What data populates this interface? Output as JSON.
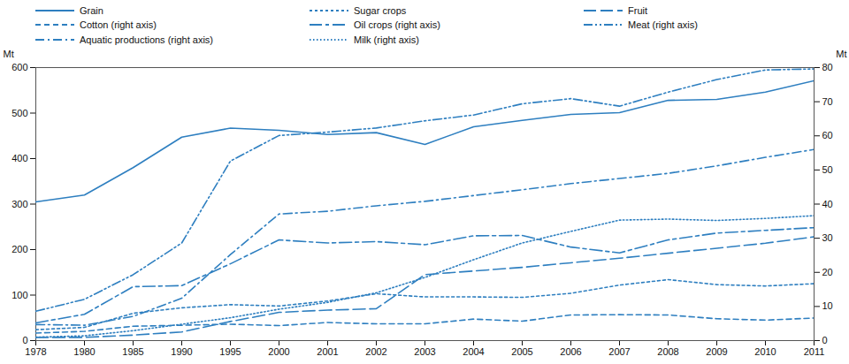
{
  "chart_data": {
    "type": "line",
    "categories": [
      "1978",
      "1980",
      "1985",
      "1990",
      "1995",
      "2000",
      "2001",
      "2002",
      "2003",
      "2004",
      "2005",
      "2006",
      "2007",
      "2008",
      "2009",
      "2010",
      "2011"
    ],
    "series": [
      {
        "name": "Grain",
        "color": "#2e7fc0",
        "line_style": "solid",
        "axis": "y",
        "values": [
          305,
          320,
          380,
          447,
          467,
          462,
          453,
          457,
          431,
          470,
          484,
          497,
          501,
          528,
          530,
          546,
          571
        ]
      },
      {
        "name": "Sugar crops",
        "color": "#2e7fc0",
        "line_style": "shortdash",
        "axis": "y",
        "values": [
          24,
          29,
          60,
          72,
          79,
          76,
          87,
          103,
          96,
          96,
          95,
          104,
          122,
          134,
          123,
          120,
          125
        ]
      },
      {
        "name": "Fruit",
        "color": "#2e7fc0",
        "line_style": "longdash",
        "axis": "y",
        "values": [
          7,
          7,
          12,
          19,
          42,
          62,
          67,
          70,
          145,
          153,
          161,
          171,
          181,
          192,
          203,
          214,
          228
        ]
      },
      {
        "name": "Cotton (right axis)",
        "color": "#2e7fc0",
        "line_style": "dashed",
        "axis": "y2",
        "values": [
          2.2,
          2.7,
          4.2,
          4.5,
          4.8,
          4.4,
          5.3,
          4.9,
          4.9,
          6.3,
          5.7,
          7.5,
          7.6,
          7.5,
          6.4,
          6.0,
          6.6
        ]
      },
      {
        "name": "Oil crops (right axis)",
        "color": "#2e7fc0",
        "line_style": "longdashdot",
        "axis": "y2",
        "values": [
          5.2,
          7.7,
          15.8,
          16.1,
          22.5,
          29.5,
          28.6,
          29.0,
          28.1,
          30.7,
          30.8,
          27.4,
          25.7,
          29.5,
          31.5,
          32.3,
          33.1
        ]
      },
      {
        "name": "Meat (right axis)",
        "color": "#2e7fc0",
        "line_style": "dashdotdot",
        "axis": "y2",
        "values": [
          8.6,
          12.1,
          19.3,
          28.6,
          52.6,
          60.1,
          61.1,
          62.3,
          64.4,
          66.1,
          69.4,
          70.9,
          68.7,
          72.8,
          76.5,
          79.3,
          79.6
        ]
      },
      {
        "name": "Aquatic productions (right axis)",
        "color": "#2e7fc0",
        "line_style": "dashdot",
        "axis": "y2",
        "values": [
          4.7,
          4.5,
          7.1,
          12.4,
          25.2,
          37.1,
          37.9,
          39.5,
          40.8,
          42.5,
          44.2,
          46.0,
          47.5,
          49.0,
          51.2,
          53.7,
          56.0
        ]
      },
      {
        "name": "Milk (right axis)",
        "color": "#2e7fc0",
        "line_style": "dotted",
        "axis": "y2",
        "values": [
          1.0,
          1.4,
          2.9,
          4.8,
          6.7,
          9.2,
          11.2,
          14.0,
          18.5,
          23.7,
          28.6,
          32.0,
          35.3,
          35.6,
          35.2,
          35.8,
          36.6
        ]
      }
    ],
    "ylabel": "Mt",
    "y2label": "Mt",
    "ylim": [
      0,
      600
    ],
    "yticks": [
      0,
      100,
      200,
      300,
      400,
      500,
      600
    ],
    "y2lim": [
      0,
      80
    ],
    "y2ticks": [
      0,
      10,
      20,
      30,
      40,
      50,
      60,
      70,
      80
    ],
    "grid": false,
    "legend": "top"
  }
}
